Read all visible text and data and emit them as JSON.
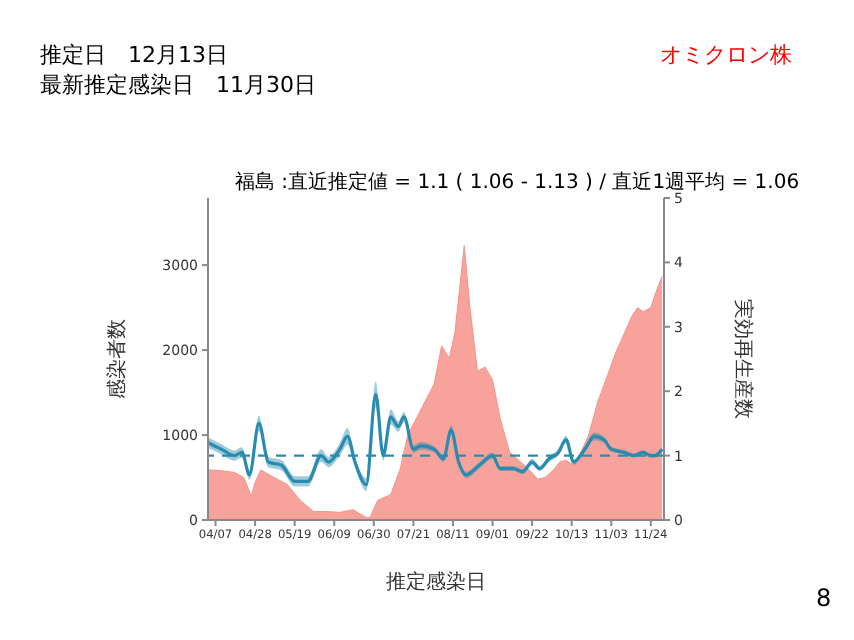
{
  "chart_data": {
    "type": "area",
    "title": "福島 :直近推定値 = 1.1 ( 1.06 - 1.13 ) / 直近1週平均 = 1.06",
    "xlabel": "推定感染日",
    "ylabel": "感染者数",
    "y2label": "実効再生産数",
    "annotations": [
      "推定日　12月13日",
      "最新推定感染日　11月30日",
      "オミクロン株",
      "8"
    ],
    "xlim": [
      "--04-03",
      "--12-01"
    ],
    "xticks": [
      {
        "value": "--04-07",
        "label": "04/07"
      },
      {
        "value": "--04-28",
        "label": "04/28"
      },
      {
        "value": "--05-19",
        "label": "05/19"
      },
      {
        "value": "--06-09",
        "label": "06/09"
      },
      {
        "value": "--06-30",
        "label": "06/30"
      },
      {
        "value": "--07-21",
        "label": "07/21"
      },
      {
        "value": "--08-11",
        "label": "08/11"
      },
      {
        "value": "--09-01",
        "label": "09/01"
      },
      {
        "value": "--09-22",
        "label": "09/22"
      },
      {
        "value": "--10-13",
        "label": "10/13"
      },
      {
        "value": "--11-03",
        "label": "11/03"
      },
      {
        "value": "--11-24",
        "label": "11/24"
      }
    ],
    "ylim": [
      0,
      3790
    ],
    "yticks": [
      0,
      1000,
      2000,
      3000
    ],
    "y2lim": [
      0,
      5
    ],
    "y2ticks": [
      0,
      1,
      2,
      3,
      4,
      5
    ],
    "ref_lines": [
      {
        "axis": "y2",
        "value": 1,
        "color": "#2a8bb0",
        "line_style": "dashed"
      }
    ],
    "series": [
      {
        "color": "#f7928b",
        "x": [
          "--04-03",
          "--04-10",
          "--04-17",
          "--04-22",
          "--04-26",
          "--04-28",
          "--05-01",
          "--05-08",
          "--05-15",
          "--05-22",
          "--05-29",
          "--06-05",
          "--06-12",
          "--06-19",
          "--06-26",
          "--06-28",
          "--07-02",
          "--07-09",
          "--07-14",
          "--07-18",
          "--07-25",
          "--08-01",
          "--08-05",
          "--08-09",
          "--08-12",
          "--08-17",
          "--08-20",
          "--08-24",
          "--08-28",
          "--09-01",
          "--09-05",
          "--09-10",
          "--09-15",
          "--09-20",
          "--09-25",
          "--09-29",
          "--10-03",
          "--10-07",
          "--10-10",
          "--10-14",
          "--10-18",
          "--10-22",
          "--10-27",
          "--11-01",
          "--11-05",
          "--11-09",
          "--11-14",
          "--11-17",
          "--11-20",
          "--11-24",
          "--11-27",
          "--11-30"
        ],
        "values": [
          590,
          580,
          560,
          500,
          280,
          440,
          590,
          500,
          420,
          230,
          100,
          100,
          90,
          120,
          30,
          30,
          230,
          300,
          600,
          1000,
          1300,
          1600,
          2050,
          1900,
          2200,
          3230,
          2500,
          1750,
          1800,
          1650,
          1200,
          800,
          700,
          600,
          480,
          500,
          580,
          690,
          700,
          650,
          800,
          1000,
          1400,
          1700,
          1950,
          2150,
          2400,
          2500,
          2450,
          2500,
          2700,
          2870
        ]
      },
      {
        "type": "line",
        "axis": "y2",
        "color": "#2a8bb0",
        "x": [
          "--04-03",
          "--04-10",
          "--04-17",
          "--04-21",
          "--04-25",
          "--04-30",
          "--05-05",
          "--05-12",
          "--05-19",
          "--05-26",
          "--06-02",
          "--06-06",
          "--06-12",
          "--06-16",
          "--06-20",
          "--06-26",
          "--07-01",
          "--07-05",
          "--07-09",
          "--07-13",
          "--07-16",
          "--07-21",
          "--07-25",
          "--08-01",
          "--08-06",
          "--08-10",
          "--08-14",
          "--08-18",
          "--08-25",
          "--09-01",
          "--09-05",
          "--09-12",
          "--09-17",
          "--09-22",
          "--09-26",
          "--10-01",
          "--10-06",
          "--10-10",
          "--10-14",
          "--10-20",
          "--10-25",
          "--10-30",
          "--11-03",
          "--11-10",
          "--11-15",
          "--11-20",
          "--11-24",
          "--11-26",
          "--11-30"
        ],
        "values": [
          1.2,
          1.1,
          1.0,
          1.05,
          0.7,
          1.5,
          0.9,
          0.85,
          0.6,
          0.6,
          1.0,
          0.9,
          1.1,
          1.3,
          0.9,
          0.55,
          1.95,
          1.0,
          1.6,
          1.45,
          1.6,
          1.1,
          1.15,
          1.1,
          0.95,
          1.4,
          0.9,
          0.7,
          0.85,
          1.0,
          0.8,
          0.8,
          0.75,
          0.9,
          0.8,
          0.95,
          1.05,
          1.25,
          0.9,
          1.1,
          1.3,
          1.25,
          1.1,
          1.05,
          1.0,
          1.05,
          1.0,
          1.0,
          1.1
        ],
        "lower": [
          1.12,
          1.02,
          0.92,
          0.97,
          0.62,
          1.38,
          0.82,
          0.77,
          0.52,
          0.52,
          0.9,
          0.82,
          1.0,
          1.17,
          0.82,
          0.45,
          1.75,
          0.92,
          1.48,
          1.37,
          1.52,
          1.04,
          1.09,
          1.05,
          0.9,
          1.33,
          0.85,
          0.65,
          0.8,
          0.95,
          0.76,
          0.76,
          0.71,
          0.85,
          0.76,
          0.9,
          1.0,
          1.19,
          0.86,
          1.05,
          1.24,
          1.2,
          1.06,
          1.02,
          0.97,
          1.02,
          0.97,
          0.97,
          1.06
        ],
        "upper": [
          1.28,
          1.18,
          1.08,
          1.13,
          0.78,
          1.62,
          0.98,
          0.93,
          0.68,
          0.68,
          1.1,
          0.98,
          1.2,
          1.43,
          0.98,
          0.65,
          2.15,
          1.08,
          1.72,
          1.53,
          1.68,
          1.16,
          1.21,
          1.15,
          1.0,
          1.47,
          0.95,
          0.75,
          0.9,
          1.05,
          0.84,
          0.84,
          0.79,
          0.95,
          0.84,
          1.0,
          1.1,
          1.31,
          0.94,
          1.15,
          1.36,
          1.3,
          1.14,
          1.08,
          1.03,
          1.08,
          1.03,
          1.03,
          1.13
        ]
      }
    ]
  }
}
